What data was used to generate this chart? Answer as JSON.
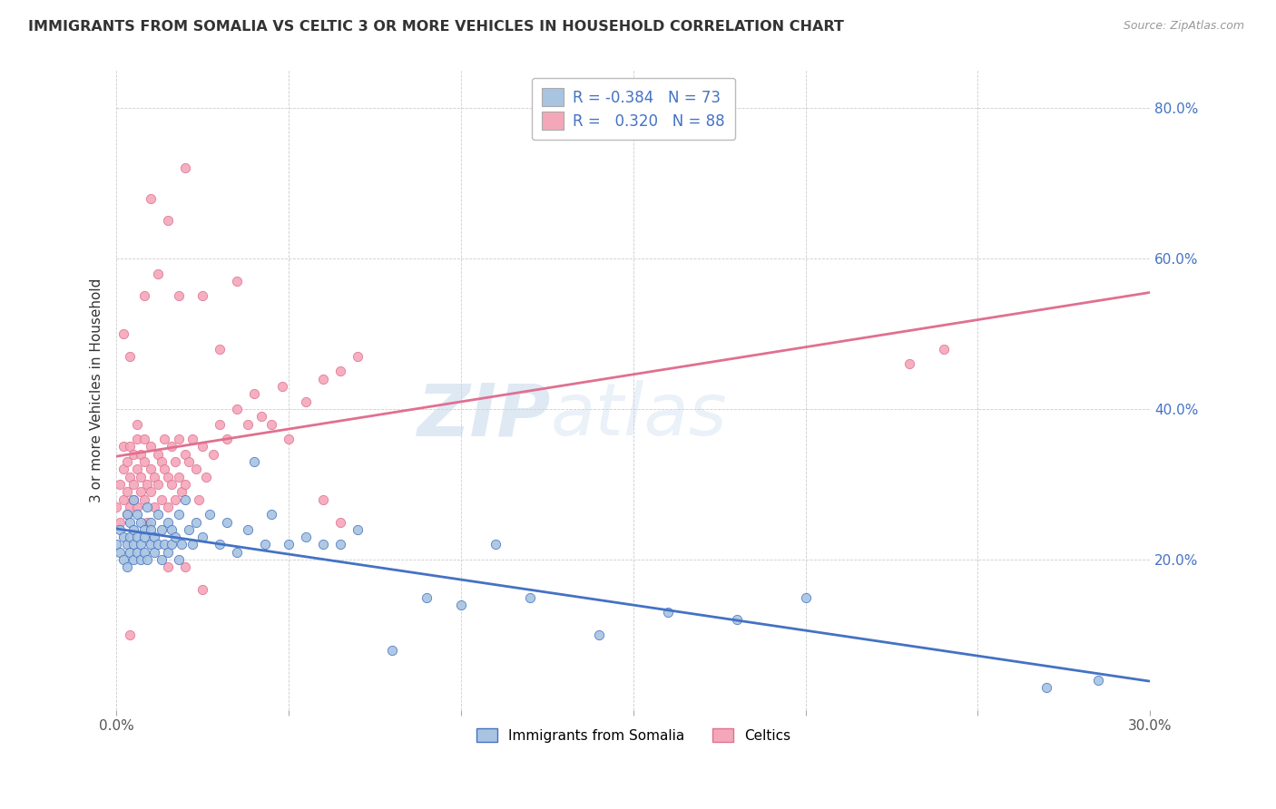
{
  "title": "IMMIGRANTS FROM SOMALIA VS CELTIC 3 OR MORE VEHICLES IN HOUSEHOLD CORRELATION CHART",
  "source": "Source: ZipAtlas.com",
  "ylabel": "3 or more Vehicles in Household",
  "watermark_zip": "ZIP",
  "watermark_atlas": "atlas",
  "legend_somalia": "Immigrants from Somalia",
  "legend_celtics": "Celtics",
  "r_somalia": -0.384,
  "n_somalia": 73,
  "r_celtics": 0.32,
  "n_celtics": 88,
  "xlim": [
    0.0,
    0.3
  ],
  "ylim": [
    0.0,
    0.85
  ],
  "color_somalia": "#a8c4e0",
  "color_celtics": "#f4a7b9",
  "line_color_somalia": "#4472c4",
  "line_color_celtics": "#e07090",
  "somalia_x": [
    0.0,
    0.001,
    0.001,
    0.002,
    0.002,
    0.003,
    0.003,
    0.003,
    0.004,
    0.004,
    0.004,
    0.005,
    0.005,
    0.005,
    0.005,
    0.006,
    0.006,
    0.006,
    0.007,
    0.007,
    0.007,
    0.008,
    0.008,
    0.008,
    0.009,
    0.009,
    0.01,
    0.01,
    0.01,
    0.011,
    0.011,
    0.012,
    0.012,
    0.013,
    0.013,
    0.014,
    0.015,
    0.015,
    0.016,
    0.016,
    0.017,
    0.018,
    0.018,
    0.019,
    0.02,
    0.021,
    0.022,
    0.023,
    0.025,
    0.027,
    0.03,
    0.032,
    0.035,
    0.038,
    0.04,
    0.043,
    0.045,
    0.05,
    0.055,
    0.06,
    0.065,
    0.07,
    0.08,
    0.09,
    0.1,
    0.11,
    0.12,
    0.14,
    0.16,
    0.18,
    0.2,
    0.27,
    0.285
  ],
  "somalia_y": [
    0.22,
    0.21,
    0.24,
    0.2,
    0.23,
    0.26,
    0.22,
    0.19,
    0.25,
    0.21,
    0.23,
    0.28,
    0.24,
    0.2,
    0.22,
    0.26,
    0.23,
    0.21,
    0.25,
    0.22,
    0.2,
    0.24,
    0.21,
    0.23,
    0.27,
    0.2,
    0.25,
    0.22,
    0.24,
    0.21,
    0.23,
    0.26,
    0.22,
    0.24,
    0.2,
    0.22,
    0.25,
    0.21,
    0.24,
    0.22,
    0.23,
    0.26,
    0.2,
    0.22,
    0.28,
    0.24,
    0.22,
    0.25,
    0.23,
    0.26,
    0.22,
    0.25,
    0.21,
    0.24,
    0.33,
    0.22,
    0.26,
    0.22,
    0.23,
    0.22,
    0.22,
    0.24,
    0.08,
    0.15,
    0.14,
    0.22,
    0.15,
    0.1,
    0.13,
    0.12,
    0.15,
    0.03,
    0.04
  ],
  "celtics_x": [
    0.0,
    0.001,
    0.001,
    0.002,
    0.002,
    0.002,
    0.003,
    0.003,
    0.003,
    0.004,
    0.004,
    0.004,
    0.005,
    0.005,
    0.005,
    0.006,
    0.006,
    0.006,
    0.007,
    0.007,
    0.007,
    0.008,
    0.008,
    0.008,
    0.009,
    0.009,
    0.01,
    0.01,
    0.01,
    0.011,
    0.011,
    0.012,
    0.012,
    0.013,
    0.013,
    0.014,
    0.014,
    0.015,
    0.015,
    0.016,
    0.016,
    0.017,
    0.017,
    0.018,
    0.018,
    0.019,
    0.02,
    0.02,
    0.021,
    0.022,
    0.023,
    0.024,
    0.025,
    0.026,
    0.028,
    0.03,
    0.032,
    0.035,
    0.038,
    0.04,
    0.042,
    0.045,
    0.048,
    0.05,
    0.055,
    0.06,
    0.065,
    0.07,
    0.008,
    0.01,
    0.012,
    0.015,
    0.018,
    0.02,
    0.025,
    0.03,
    0.035,
    0.002,
    0.004,
    0.006,
    0.06,
    0.065,
    0.015,
    0.02,
    0.025,
    0.004,
    0.23,
    0.24
  ],
  "celtics_y": [
    0.27,
    0.3,
    0.25,
    0.32,
    0.28,
    0.35,
    0.29,
    0.26,
    0.33,
    0.31,
    0.27,
    0.35,
    0.3,
    0.28,
    0.34,
    0.32,
    0.27,
    0.36,
    0.31,
    0.29,
    0.34,
    0.33,
    0.28,
    0.36,
    0.3,
    0.25,
    0.32,
    0.29,
    0.35,
    0.31,
    0.27,
    0.34,
    0.3,
    0.33,
    0.28,
    0.36,
    0.32,
    0.31,
    0.27,
    0.35,
    0.3,
    0.33,
    0.28,
    0.36,
    0.31,
    0.29,
    0.34,
    0.3,
    0.33,
    0.36,
    0.32,
    0.28,
    0.35,
    0.31,
    0.34,
    0.38,
    0.36,
    0.4,
    0.38,
    0.42,
    0.39,
    0.38,
    0.43,
    0.36,
    0.41,
    0.44,
    0.45,
    0.47,
    0.55,
    0.68,
    0.58,
    0.65,
    0.55,
    0.72,
    0.55,
    0.48,
    0.57,
    0.5,
    0.47,
    0.38,
    0.28,
    0.25,
    0.19,
    0.19,
    0.16,
    0.1,
    0.46,
    0.48
  ]
}
